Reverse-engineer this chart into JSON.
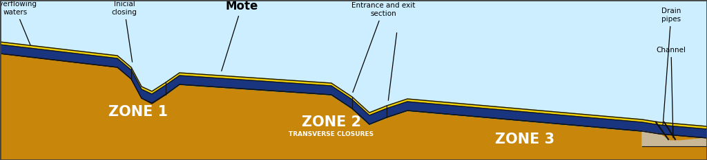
{
  "bg_sky": "#cceeff",
  "bg_ground": "#c8860a",
  "color_dark_blue": "#1a3580",
  "color_yellow": "#f0d000",
  "color_cyan": "#00c8e8",
  "color_outline": "#111111",
  "color_white_text": "#ffffff",
  "color_gray": "#c8b898",
  "figsize": [
    10.24,
    2.33
  ],
  "dpi": 100,
  "labels": {
    "overflowing": "Overflowing\nwaters",
    "inicial": "Inicial\nclosing",
    "mote": "Mote",
    "entrance": "Entrance and exit\nsection",
    "drain": "Drain\npipes",
    "channel": "Channel",
    "zone1": "ZONE 1",
    "zone2": "ZONE 2",
    "zone2sub": "TRANSVERSE CLOSURES",
    "zone3": "ZONE 3"
  }
}
